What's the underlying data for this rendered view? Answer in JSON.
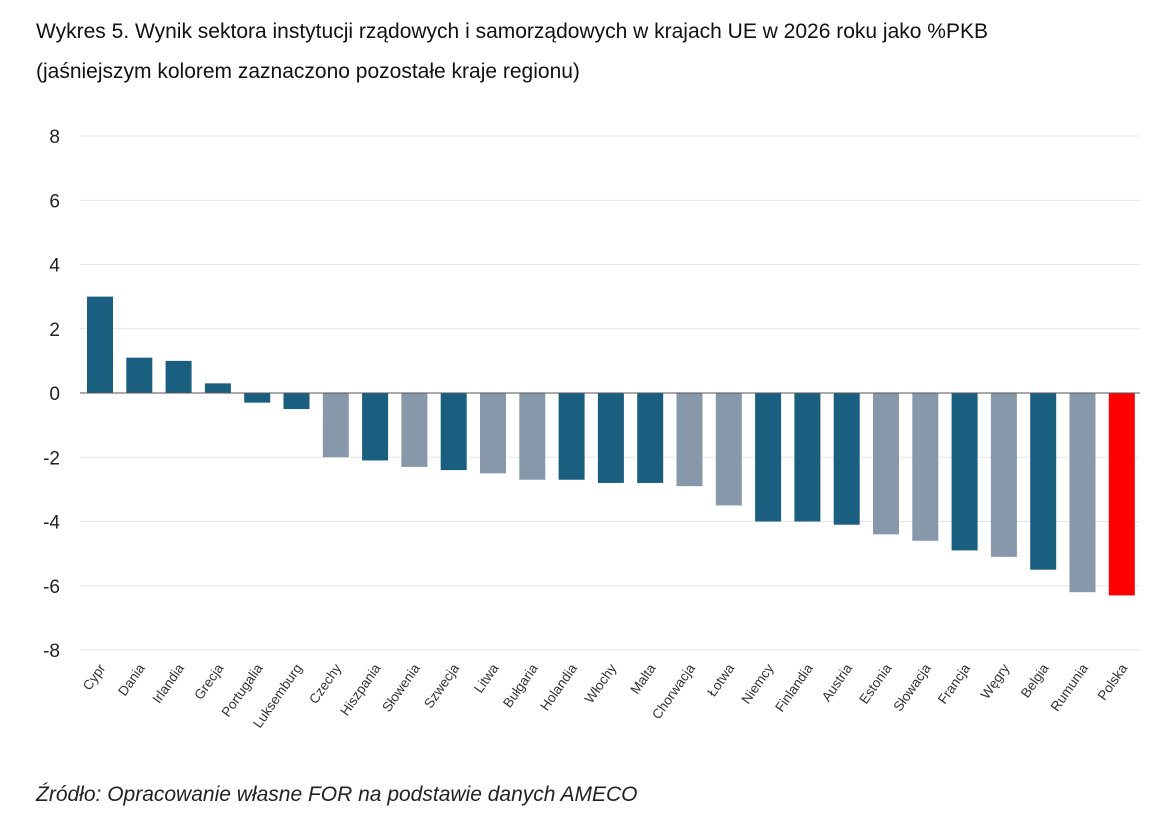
{
  "chart_data": {
    "type": "bar",
    "title": "Wykres 5. Wynik sektora instytucji rządowych i samorządowych w krajach UE w 2026 roku jako %PKB",
    "subtitle": "(jaśniejszym kolorem zaznaczono pozostałe kraje regionu)",
    "xlabel": "",
    "ylabel": "",
    "ylim": [
      -8,
      8
    ],
    "yticks": [
      8,
      6,
      4,
      2,
      0,
      -2,
      -4,
      -6,
      -8
    ],
    "grid": true,
    "categories": [
      "Cypr",
      "Dania",
      "Irlandia",
      "Grecja",
      "Portugalia",
      "Luksemburg",
      "Czechy",
      "Hiszpania",
      "Słowenia",
      "Szwecja",
      "Litwa",
      "Bułgaria",
      "Holandia",
      "Włochy",
      "Malta",
      "Chorwacja",
      "Łotwa",
      "Niemcy",
      "Finlandia",
      "Austria",
      "Estonia",
      "Słowacja",
      "Francja",
      "Węgry",
      "Belgia",
      "Rumunia",
      "Polska"
    ],
    "values": [
      3.0,
      1.1,
      1.0,
      0.3,
      -0.3,
      -0.5,
      -2.0,
      -2.1,
      -2.3,
      -2.4,
      -2.5,
      -2.7,
      -2.7,
      -2.8,
      -2.8,
      -2.9,
      -3.5,
      -4.0,
      -4.0,
      -4.1,
      -4.4,
      -4.6,
      -4.9,
      -5.1,
      -5.5,
      -6.2,
      -6.3
    ],
    "groups": [
      "other",
      "other",
      "other",
      "other",
      "other",
      "other",
      "region",
      "other",
      "region",
      "other",
      "region",
      "region",
      "other",
      "other",
      "other",
      "region",
      "region",
      "other",
      "other",
      "other",
      "region",
      "region",
      "other",
      "region",
      "other",
      "region",
      "poland"
    ],
    "colors": {
      "other": "#1a5f80",
      "region": "#8798aa",
      "poland": "#ff0000"
    }
  },
  "source": "Źródło: Opracowanie własne FOR na podstawie danych AMECO"
}
